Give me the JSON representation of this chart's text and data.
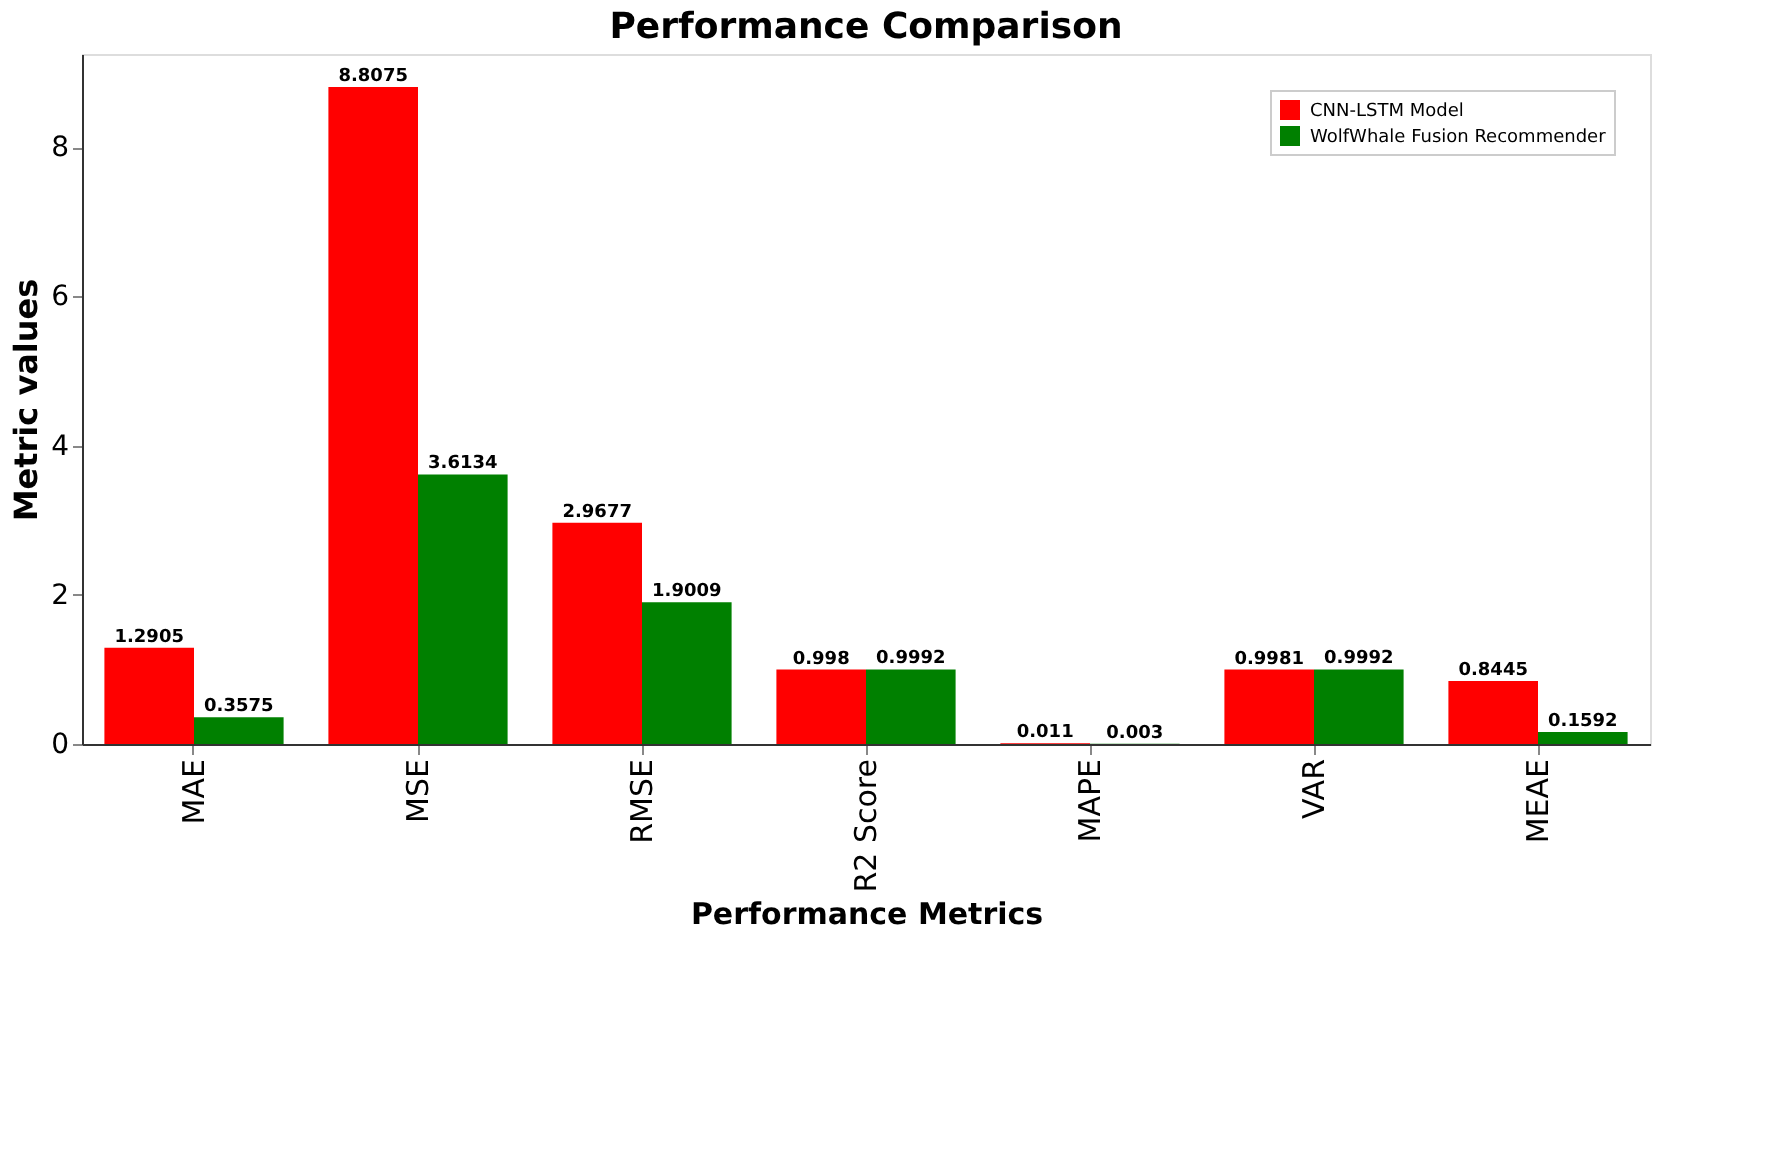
{
  "chart_data": {
    "type": "bar",
    "title": "Performance Comparison",
    "xlabel": "Performance Metrics",
    "ylabel": "Metric values",
    "categories": [
      "MAE",
      "MSE",
      "RMSE",
      "R2 Score",
      "MAPE",
      "VAR",
      "MEAE"
    ],
    "series": [
      {
        "name": "CNN-LSTM Model",
        "color": "#ff0000",
        "values": [
          1.2905,
          8.8075,
          2.9677,
          0.998,
          0.011,
          0.9981,
          0.8445
        ]
      },
      {
        "name": "WolfWhale Fusion Recommender",
        "color": "#008000",
        "values": [
          0.3575,
          3.6134,
          1.9009,
          0.9992,
          0.003,
          0.9992,
          0.1592
        ]
      }
    ],
    "ylim": [
      0,
      9.25
    ],
    "yticks": [
      0,
      2,
      4,
      6,
      8
    ],
    "grid": false,
    "legend": "top right",
    "data_labels": true
  }
}
